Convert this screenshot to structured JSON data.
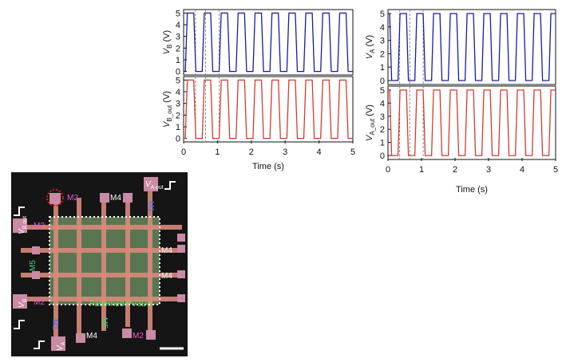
{
  "chart_data": [
    {
      "id": "left",
      "type": "line",
      "panels": [
        {
          "ylabel": "V_B (V)",
          "ylabel_main": "V",
          "ylabel_sub": "B",
          "ylabel_unit": "(V)",
          "color": "#1a1aa6",
          "ylim": [
            -0.3,
            5.3
          ],
          "yticks": [
            "0",
            "1",
            "2",
            "3",
            "4",
            "5"
          ],
          "pulse": {
            "start": 0.05,
            "period": 0.5,
            "high_width": 0.25,
            "edge": 0.06,
            "low": 0,
            "high": 5,
            "x_end": 5
          }
        },
        {
          "ylabel": "V_B_out (V)",
          "ylabel_main": "V",
          "ylabel_sub": "B_out",
          "ylabel_unit": "(V)",
          "color": "#d43a30",
          "ylim": [
            -0.3,
            5.3
          ],
          "yticks": [
            "0",
            "1",
            "2",
            "3",
            "4",
            "5"
          ],
          "pulse": {
            "start": 0.05,
            "period": 0.5,
            "high_width": 0.25,
            "edge": 0.06,
            "low": 0,
            "high": 5,
            "x_end": 5
          }
        }
      ],
      "xlabel": "Time (s)",
      "xlim": [
        0,
        5
      ],
      "xticks": [
        "0",
        "1",
        "2",
        "3",
        "4",
        "5"
      ],
      "dashed_markers_x": [
        0.35,
        0.65,
        1.05
      ]
    },
    {
      "id": "right",
      "type": "line",
      "panels": [
        {
          "ylabel": "V_A (V)",
          "ylabel_main": "V",
          "ylabel_sub": "A",
          "ylabel_unit": "(V)",
          "color": "#1a1aa6",
          "ylim": [
            -0.3,
            5.3
          ],
          "yticks": [
            "0",
            "1",
            "2",
            "3",
            "4",
            "5"
          ],
          "pulse": {
            "start": 0.05,
            "period": 0.5,
            "high_width": 0.25,
            "edge": 0.06,
            "low": 0,
            "high": 5,
            "x_end": 5,
            "inverted": true
          }
        },
        {
          "ylabel": "V_A_out (V)",
          "ylabel_main": "V",
          "ylabel_sub": "A_out",
          "ylabel_unit": "(V)",
          "color": "#d43a30",
          "ylim": [
            -0.3,
            5.3
          ],
          "yticks": [
            "0",
            "1",
            "2",
            "3",
            "4",
            "5"
          ],
          "pulse": {
            "start": 0.05,
            "period": 0.5,
            "high_width": 0.25,
            "edge": 0.06,
            "low": 0,
            "high": 5,
            "x_end": 5,
            "inverted": true
          }
        }
      ],
      "xlabel": "Time (s)",
      "xlim": [
        0,
        5
      ],
      "xticks": [
        "0",
        "1",
        "2",
        "3",
        "4",
        "5"
      ],
      "dashed_markers_x": [
        0.35,
        0.65,
        1.05
      ]
    }
  ],
  "micrograph": {
    "labels": {
      "m2": "M2",
      "m4": "M4",
      "m1": "M1",
      "m5": "M5",
      "va_out_main": "V",
      "va_out_sub": "A out",
      "vb_out_main": "V",
      "vb_out_sub": "B out",
      "vb_main": "V",
      "vb_sub": "B",
      "va_main": "V",
      "va_sub": "A",
      "patterned": "Patterned PV3D3"
    },
    "colors": {
      "background": "#151515",
      "pad": "#c98aa6",
      "line": "#d98a7a",
      "film": "#5e7a55",
      "m2_label": "#e85ad2",
      "m4_label": "#ffffff",
      "m1_label": "#4a64ff",
      "m5_label": "#3ad87a",
      "m3_label": "#ff6a6a",
      "patterned_label": "#6ee35a"
    }
  }
}
